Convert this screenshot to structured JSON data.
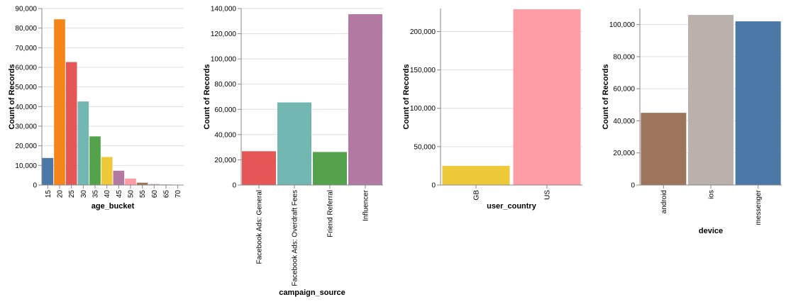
{
  "chart_data": [
    {
      "type": "bar",
      "xlabel": "age_bucket",
      "ylabel": "Count of Records",
      "ylim": [
        0,
        90000
      ],
      "yticks": [
        0,
        10000,
        20000,
        30000,
        40000,
        50000,
        60000,
        70000,
        80000,
        90000
      ],
      "grid": true,
      "categories": [
        "15",
        "20",
        "25",
        "30",
        "35",
        "40",
        "45",
        "50",
        "55",
        "60",
        "65",
        "70"
      ],
      "values": [
        13800,
        84500,
        62700,
        42600,
        24800,
        14300,
        7300,
        3300,
        1200,
        500,
        250,
        100
      ],
      "colors": [
        "#4c78a8",
        "#f58518",
        "#e45756",
        "#72b7b2",
        "#54a24b",
        "#eeca3b",
        "#b279a2",
        "#ff9da6",
        "#9d755d",
        "#bab0ac",
        "#4c78a8",
        "#f58518"
      ]
    },
    {
      "type": "bar",
      "xlabel": "campaign_source",
      "ylabel": "Count of Records",
      "ylim": [
        0,
        140000
      ],
      "yticks": [
        0,
        20000,
        40000,
        60000,
        80000,
        100000,
        120000,
        140000
      ],
      "grid": true,
      "categories": [
        "Facebook Ads: General",
        "Facebook Ads: Overdraft Fees",
        "Friend Referral",
        "Influencer"
      ],
      "values": [
        26800,
        65500,
        26200,
        135500
      ],
      "colors": [
        "#e45756",
        "#72b7b2",
        "#54a24b",
        "#b279a2"
      ]
    },
    {
      "type": "bar",
      "xlabel": "user_country",
      "ylabel": "Count of Records",
      "ylim": [
        0,
        230000
      ],
      "yticks": [
        0,
        50000,
        100000,
        150000,
        200000
      ],
      "grid": true,
      "categories": [
        "GB",
        "US"
      ],
      "values": [
        25000,
        229000
      ],
      "colors": [
        "#eeca3b",
        "#ff9da6"
      ]
    },
    {
      "type": "bar",
      "xlabel": "device",
      "ylabel": "Count of Records",
      "ylim": [
        0,
        110000
      ],
      "yticks": [
        0,
        20000,
        40000,
        60000,
        80000,
        100000
      ],
      "grid": true,
      "categories": [
        "android",
        "ios",
        "messenger"
      ],
      "values": [
        45000,
        106000,
        102000
      ],
      "colors": [
        "#9d755d",
        "#bab0ac",
        "#4c78a8"
      ]
    }
  ]
}
